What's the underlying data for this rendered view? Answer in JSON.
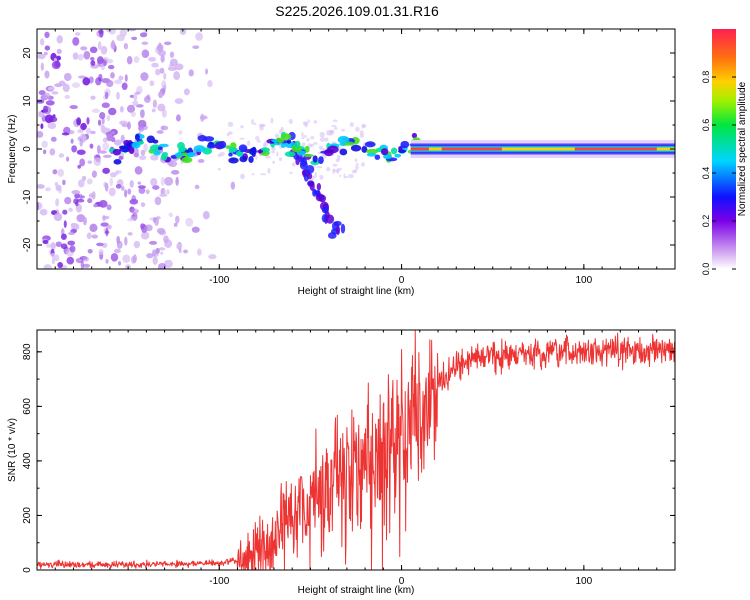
{
  "figure": {
    "title": "S225.2026.109.01.31.R16"
  },
  "chart_data": [
    {
      "type": "heatmap",
      "title": "S225.2026.109.01.31.R16",
      "xlabel": "Height of straight line (km)",
      "ylabel": "Frequency (Hz)",
      "xlim": [
        -200,
        150
      ],
      "ylim": [
        -25,
        25
      ],
      "xticks": [
        -100,
        0,
        100
      ],
      "xtick_labels": [
        "-100",
        "0",
        "100"
      ],
      "yticks": [
        -20,
        -10,
        0,
        10,
        20
      ],
      "ytick_labels": [
        "-20",
        "-10",
        "0",
        "10",
        "20"
      ],
      "colorbar": {
        "label": "Normalized spectral amplitude",
        "range": [
          0,
          1
        ],
        "ticks": [
          0.0,
          0.2,
          0.4,
          0.6,
          0.8
        ],
        "tick_labels": [
          "0.0",
          "0.2",
          "0.4",
          "0.6",
          "0.8"
        ],
        "colormap": "rainbow"
      },
      "features": {
        "carrier_frequency_hz": 0,
        "carrier_visible_from_km": -160,
        "scatter_region_km": [
          -200,
          -100
        ],
        "descending_branch": {
          "x_km": [
            -60,
            -35
          ],
          "y_hz": [
            2,
            -18
          ]
        }
      }
    },
    {
      "type": "line",
      "xlabel": "Height of straight line (km)",
      "ylabel": "SNR (10 * v/v)",
      "xlim": [
        -200,
        150
      ],
      "ylim": [
        0,
        880
      ],
      "xticks": [
        -100,
        0,
        100
      ],
      "xtick_labels": [
        "-100",
        "0",
        "100"
      ],
      "yticks": [
        0,
        200,
        400,
        600,
        800
      ],
      "ytick_labels": [
        "0",
        "200",
        "400",
        "600",
        "800"
      ],
      "series": [
        {
          "name": "SNR",
          "color": "#ee3333",
          "x": [
            -200,
            -150,
            -100,
            -90,
            -80,
            -70,
            -60,
            -50,
            -40,
            -30,
            -20,
            -10,
            0,
            10,
            20,
            30,
            40,
            60,
            80,
            100,
            120,
            150
          ],
          "y": [
            20,
            20,
            25,
            35,
            60,
            130,
            210,
            260,
            310,
            340,
            390,
            450,
            530,
            600,
            680,
            740,
            780,
            790,
            790,
            800,
            805,
            805
          ]
        }
      ]
    }
  ]
}
